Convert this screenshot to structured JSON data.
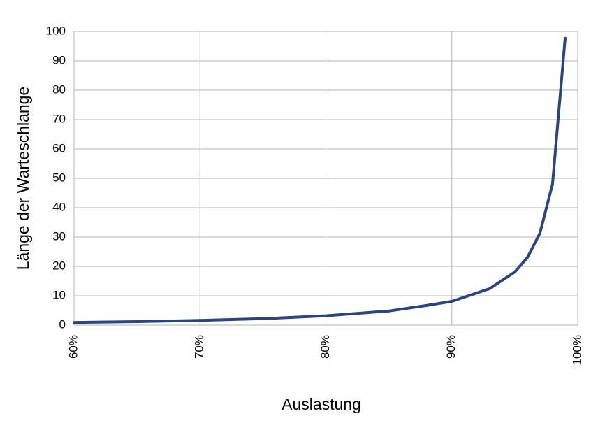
{
  "chart_data": {
    "type": "line",
    "title": "",
    "xlabel": "Auslastung",
    "ylabel": "Länge der Warteschlange",
    "xlim": [
      0.6,
      1.0
    ],
    "ylim": [
      0,
      100
    ],
    "x_ticks": [
      0.6,
      0.7,
      0.8,
      0.9,
      1.0
    ],
    "x_tick_labels": [
      "60%",
      "70%",
      "80%",
      "90%",
      "100%"
    ],
    "y_ticks": [
      0,
      10,
      20,
      30,
      40,
      50,
      60,
      70,
      80,
      90,
      100
    ],
    "y_tick_labels": [
      "0",
      "10",
      "20",
      "30",
      "40",
      "50",
      "60",
      "70",
      "80",
      "90",
      "100"
    ],
    "grid": true,
    "legend": "none",
    "colors": {
      "series": "#2a4480",
      "grid": "#b3b3b3"
    },
    "series": [
      {
        "x": [
          0.6,
          0.65,
          0.7,
          0.75,
          0.8,
          0.85,
          0.88,
          0.9,
          0.93,
          0.95,
          0.96,
          0.97,
          0.98,
          0.99
        ],
        "y": [
          0.9,
          1.2,
          1.6,
          2.2,
          3.2,
          4.8,
          6.7,
          8.1,
          12.4,
          18.1,
          23.0,
          31.3,
          48.0,
          97.7
        ]
      }
    ]
  }
}
